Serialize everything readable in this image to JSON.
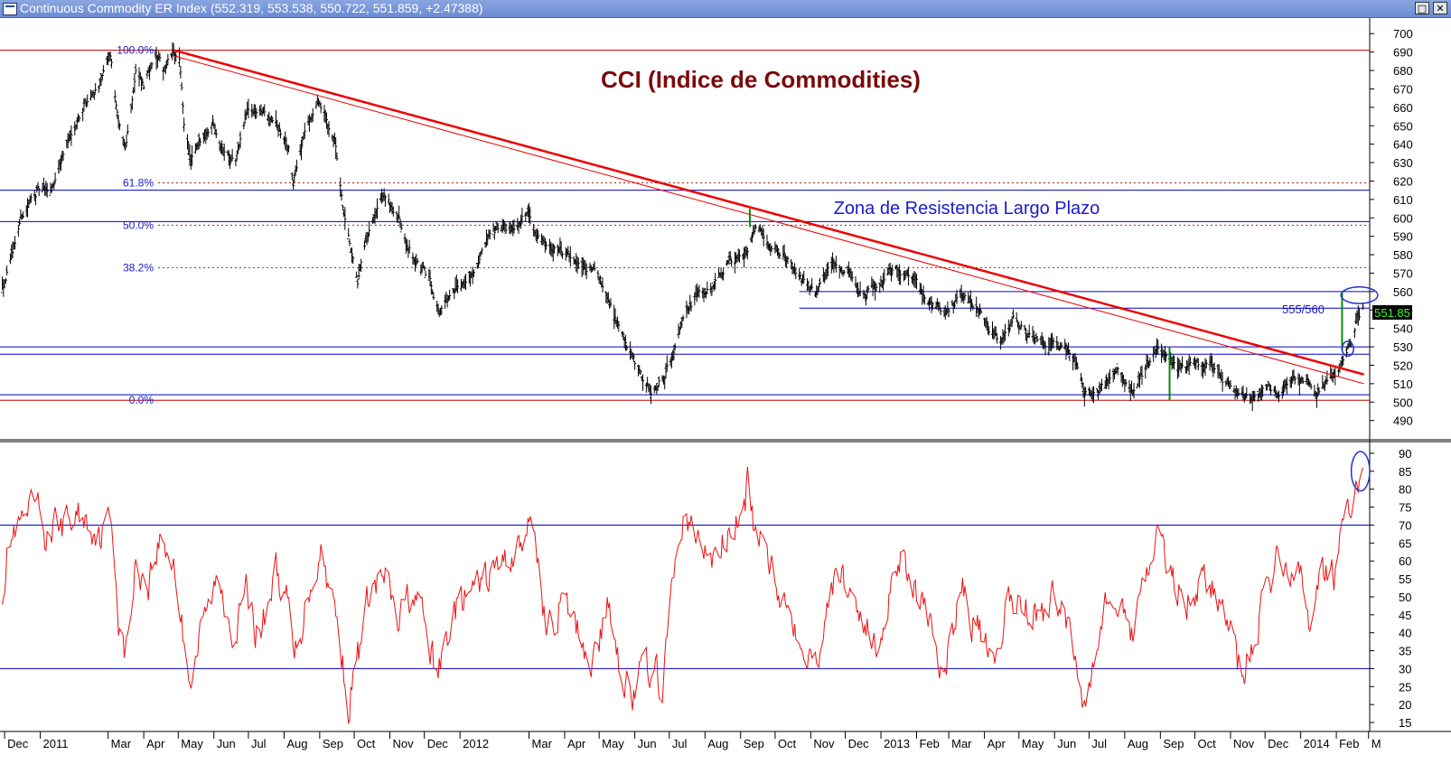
{
  "window": {
    "title": "Continuous Commodity ER Index",
    "quote": "(552.319, 553.538, 550.722, 551.859, +2.47388)",
    "restore_glyph": "□",
    "close_glyph": "✕"
  },
  "chart_data": [
    {
      "type": "ohlc",
      "title": "CCI (Indice de Commodities)",
      "price_label": "551.85",
      "annotation_zone": "Zona de Resistencia Largo Plazo",
      "annotation_level": "555/560",
      "ylim": [
        482,
        706
      ],
      "y_ticks": [
        490,
        500,
        510,
        520,
        530,
        540,
        550,
        560,
        570,
        580,
        590,
        600,
        610,
        620,
        630,
        640,
        650,
        660,
        670,
        680,
        690,
        700
      ],
      "fibonacci": [
        {
          "label": "100.0%",
          "value": 691
        },
        {
          "label": "61.8%",
          "value": 619
        },
        {
          "label": "50.0%",
          "value": 596
        },
        {
          "label": "38.2%",
          "value": 573
        },
        {
          "label": "0.0%",
          "value": 501
        }
      ],
      "horizontal_lines": [
        {
          "value": 615,
          "color": "#0000cc"
        },
        {
          "value": 598,
          "color": "#0000cc"
        },
        {
          "value": 560,
          "color": "#0000cc",
          "from": "2012-10-22"
        },
        {
          "value": 551,
          "color": "#0000cc",
          "from": "2012-10-22"
        },
        {
          "value": 530,
          "color": "#0000cc"
        },
        {
          "value": 526,
          "color": "#0000cc"
        },
        {
          "value": 504,
          "color": "#0000cc"
        },
        {
          "value": 691,
          "color": "#cc0000"
        },
        {
          "value": 501,
          "color": "#cc0000"
        }
      ],
      "trendlines": [
        {
          "from": [
            "2011-04-27",
            691
          ],
          "to": [
            "2014-02-25",
            515
          ],
          "color": "#ee0000",
          "width": 2.5
        },
        {
          "from": [
            "2011-04-27",
            688
          ],
          "to": [
            "2014-02-25",
            510
          ],
          "color": "#ee0000",
          "width": 1
        }
      ],
      "vertical_markers": [
        {
          "date": "2012-09-09",
          "from": 595,
          "to": 605,
          "color": "#0a8a0a"
        },
        {
          "date": "2013-09-09",
          "from": 501,
          "to": 530,
          "color": "#0a8a0a"
        },
        {
          "date": "2014-02-06",
          "from": 528,
          "to": 560,
          "color": "#0a8a0a"
        }
      ],
      "circles": [
        {
          "date": "2014-02-11",
          "value": 529,
          "rx_days": 5,
          "ry": 4,
          "color": "#2233cc"
        },
        {
          "date": "2014-02-21",
          "value": 558,
          "rx_days": 16,
          "ry": 4.5,
          "color": "#2233cc"
        }
      ],
      "close_path": [
        [
          "2010-11-28",
          562
        ],
        [
          "2010-12-06",
          576
        ],
        [
          "2010-12-15",
          600
        ],
        [
          "2010-12-29",
          615
        ],
        [
          "2011-01-10",
          614
        ],
        [
          "2011-01-25",
          642
        ],
        [
          "2011-02-08",
          662
        ],
        [
          "2011-02-22",
          673
        ],
        [
          "2011-03-03",
          688
        ],
        [
          "2011-03-10",
          650
        ],
        [
          "2011-03-16",
          638
        ],
        [
          "2011-03-25",
          680
        ],
        [
          "2011-04-01",
          670
        ],
        [
          "2011-04-10",
          690
        ],
        [
          "2011-04-18",
          680
        ],
        [
          "2011-04-27",
          690
        ],
        [
          "2011-05-02",
          685
        ],
        [
          "2011-05-06",
          652
        ],
        [
          "2011-05-12",
          630
        ],
        [
          "2011-05-20",
          640
        ],
        [
          "2011-05-31",
          653
        ],
        [
          "2011-06-10",
          637
        ],
        [
          "2011-06-20",
          632
        ],
        [
          "2011-06-30",
          658
        ],
        [
          "2011-07-15",
          657
        ],
        [
          "2011-07-25",
          651
        ],
        [
          "2011-08-05",
          637
        ],
        [
          "2011-08-09",
          618
        ],
        [
          "2011-08-18",
          646
        ],
        [
          "2011-08-31",
          663
        ],
        [
          "2011-09-07",
          652
        ],
        [
          "2011-09-14",
          643
        ],
        [
          "2011-09-22",
          600
        ],
        [
          "2011-09-30",
          575
        ],
        [
          "2011-10-04",
          565
        ],
        [
          "2011-10-13",
          590
        ],
        [
          "2011-10-27",
          612
        ],
        [
          "2011-11-08",
          600
        ],
        [
          "2011-11-22",
          578
        ],
        [
          "2011-12-06",
          566
        ],
        [
          "2011-12-14",
          550
        ],
        [
          "2011-12-28",
          560
        ],
        [
          "2012-01-10",
          568
        ],
        [
          "2012-01-25",
          587
        ],
        [
          "2012-02-08",
          595
        ],
        [
          "2012-02-22",
          596
        ],
        [
          "2012-03-01",
          604
        ],
        [
          "2012-03-09",
          590
        ],
        [
          "2012-03-20",
          585
        ],
        [
          "2012-04-01",
          581
        ],
        [
          "2012-04-12",
          574
        ],
        [
          "2012-04-26",
          572
        ],
        [
          "2012-05-07",
          560
        ],
        [
          "2012-05-20",
          538
        ],
        [
          "2012-06-01",
          520
        ],
        [
          "2012-06-15",
          505
        ],
        [
          "2012-06-25",
          514
        ],
        [
          "2012-07-03",
          523
        ],
        [
          "2012-07-12",
          548
        ],
        [
          "2012-07-25",
          558
        ],
        [
          "2012-08-07",
          560
        ],
        [
          "2012-08-20",
          575
        ],
        [
          "2012-09-05",
          580
        ],
        [
          "2012-09-14",
          596
        ],
        [
          "2012-09-25",
          585
        ],
        [
          "2012-10-08",
          580
        ],
        [
          "2012-10-22",
          568
        ],
        [
          "2012-11-05",
          560
        ],
        [
          "2012-11-20",
          575
        ],
        [
          "2012-12-03",
          572
        ],
        [
          "2012-12-17",
          557
        ],
        [
          "2013-01-02",
          565
        ],
        [
          "2013-01-14",
          574
        ],
        [
          "2013-01-30",
          565
        ],
        [
          "2013-02-15",
          553
        ],
        [
          "2013-02-26",
          550
        ],
        [
          "2013-03-12",
          558
        ],
        [
          "2013-03-28",
          548
        ],
        [
          "2013-04-05",
          538
        ],
        [
          "2013-04-15",
          532
        ],
        [
          "2013-04-26",
          545
        ],
        [
          "2013-05-10",
          536
        ],
        [
          "2013-05-24",
          532
        ],
        [
          "2013-06-10",
          530
        ],
        [
          "2013-06-20",
          520
        ],
        [
          "2013-06-27",
          505
        ],
        [
          "2013-07-05",
          505
        ],
        [
          "2013-07-16",
          511
        ],
        [
          "2013-07-25",
          520
        ],
        [
          "2013-08-07",
          505
        ],
        [
          "2013-08-20",
          520
        ],
        [
          "2013-08-30",
          529
        ],
        [
          "2013-09-10",
          522
        ],
        [
          "2013-09-20",
          518
        ],
        [
          "2013-10-01",
          521
        ],
        [
          "2013-10-15",
          520
        ],
        [
          "2013-10-28",
          512
        ],
        [
          "2013-11-08",
          504
        ],
        [
          "2013-11-20",
          503
        ],
        [
          "2013-12-02",
          508
        ],
        [
          "2013-12-13",
          505
        ],
        [
          "2013-12-23",
          512
        ],
        [
          "2014-01-06",
          511
        ],
        [
          "2014-01-15",
          505
        ],
        [
          "2014-01-24",
          513
        ],
        [
          "2014-02-03",
          516
        ],
        [
          "2014-02-10",
          527
        ],
        [
          "2014-02-14",
          533
        ],
        [
          "2014-02-19",
          546
        ],
        [
          "2014-02-24",
          552
        ]
      ],
      "x_axis": {
        "start": "2010-11-27",
        "end": "2014-03-02",
        "labels": [
          [
            "Dec",
            "2010-12-01"
          ],
          [
            "2011",
            "2011-01-01"
          ],
          [
            "Mar",
            "2011-03-01"
          ],
          [
            "Apr",
            "2011-04-01"
          ],
          [
            "May",
            "2011-05-01"
          ],
          [
            "Jun",
            "2011-06-01"
          ],
          [
            "Jul",
            "2011-07-01"
          ],
          [
            "Aug",
            "2011-08-01"
          ],
          [
            "Sep",
            "2011-09-01"
          ],
          [
            "Oct",
            "2011-10-01"
          ],
          [
            "Nov",
            "2011-11-01"
          ],
          [
            "Dec",
            "2011-12-01"
          ],
          [
            "2012",
            "2012-01-01"
          ],
          [
            "Mar",
            "2012-03-01"
          ],
          [
            "Apr",
            "2012-04-01"
          ],
          [
            "May",
            "2012-05-01"
          ],
          [
            "Jun",
            "2012-06-01"
          ],
          [
            "Jul",
            "2012-07-01"
          ],
          [
            "Aug",
            "2012-08-01"
          ],
          [
            "Sep",
            "2012-09-01"
          ],
          [
            "Oct",
            "2012-10-01"
          ],
          [
            "Nov",
            "2012-11-01"
          ],
          [
            "Dec",
            "2012-12-01"
          ],
          [
            "2013",
            "2013-01-01"
          ],
          [
            "Feb",
            "2013-02-01"
          ],
          [
            "Mar",
            "2013-03-01"
          ],
          [
            "Apr",
            "2013-04-01"
          ],
          [
            "May",
            "2013-05-01"
          ],
          [
            "Jun",
            "2013-06-01"
          ],
          [
            "Jul",
            "2013-07-01"
          ],
          [
            "Aug",
            "2013-08-01"
          ],
          [
            "Sep",
            "2013-09-01"
          ],
          [
            "Oct",
            "2013-10-01"
          ],
          [
            "Nov",
            "2013-11-01"
          ],
          [
            "Dec",
            "2013-12-01"
          ],
          [
            "2014",
            "2014-01-01"
          ],
          [
            "Feb",
            "2014-02-01"
          ],
          [
            "M",
            "2014-03-01"
          ]
        ]
      }
    },
    {
      "type": "line",
      "ylim": [
        13,
        92
      ],
      "y_ticks": [
        15,
        20,
        25,
        30,
        35,
        40,
        45,
        50,
        55,
        60,
        65,
        70,
        75,
        80,
        85,
        90
      ],
      "levels": [
        70,
        30
      ],
      "circle": {
        "date": "2014-02-22",
        "value": 85,
        "rx_days": 8,
        "ry": 5.5
      },
      "series_path": [
        [
          "2010-11-28",
          50
        ],
        [
          "2010-12-05",
          66
        ],
        [
          "2010-12-15",
          69
        ],
        [
          "2010-12-29",
          75
        ],
        [
          "2011-01-05",
          67
        ],
        [
          "2011-01-20",
          70
        ],
        [
          "2011-02-05",
          73
        ],
        [
          "2011-02-22",
          68
        ],
        [
          "2011-03-05",
          72
        ],
        [
          "2011-03-10",
          45
        ],
        [
          "2011-03-16",
          33
        ],
        [
          "2011-03-25",
          58
        ],
        [
          "2011-04-05",
          55
        ],
        [
          "2011-04-15",
          66
        ],
        [
          "2011-04-27",
          60
        ],
        [
          "2011-05-05",
          40
        ],
        [
          "2011-05-12",
          28
        ],
        [
          "2011-05-25",
          45
        ],
        [
          "2011-06-05",
          55
        ],
        [
          "2011-06-20",
          40
        ],
        [
          "2011-06-30",
          52
        ],
        [
          "2011-07-10",
          38
        ],
        [
          "2011-07-25",
          58
        ],
        [
          "2011-08-05",
          46
        ],
        [
          "2011-08-10",
          32
        ],
        [
          "2011-08-22",
          52
        ],
        [
          "2011-09-02",
          63
        ],
        [
          "2011-09-12",
          50
        ],
        [
          "2011-09-20",
          35
        ],
        [
          "2011-09-26",
          20
        ],
        [
          "2011-10-05",
          35
        ],
        [
          "2011-10-15",
          52
        ],
        [
          "2011-10-28",
          55
        ],
        [
          "2011-11-08",
          42
        ],
        [
          "2011-11-20",
          52
        ],
        [
          "2011-12-01",
          42
        ],
        [
          "2011-12-12",
          27
        ],
        [
          "2011-12-26",
          46
        ],
        [
          "2012-01-10",
          50
        ],
        [
          "2012-01-26",
          56
        ],
        [
          "2012-02-10",
          60
        ],
        [
          "2012-02-24",
          66
        ],
        [
          "2012-03-05",
          70
        ],
        [
          "2012-03-16",
          42
        ],
        [
          "2012-03-28",
          48
        ],
        [
          "2012-04-10",
          42
        ],
        [
          "2012-04-25",
          32
        ],
        [
          "2012-05-10",
          48
        ],
        [
          "2012-05-20",
          30
        ],
        [
          "2012-06-01",
          22
        ],
        [
          "2012-06-10",
          32
        ],
        [
          "2012-06-25",
          25
        ],
        [
          "2012-07-05",
          55
        ],
        [
          "2012-07-12",
          72
        ],
        [
          "2012-07-25",
          66
        ],
        [
          "2012-08-08",
          60
        ],
        [
          "2012-08-22",
          68
        ],
        [
          "2012-09-03",
          72
        ],
        [
          "2012-09-07",
          81
        ],
        [
          "2012-09-15",
          65
        ],
        [
          "2012-09-28",
          60
        ],
        [
          "2012-10-10",
          48
        ],
        [
          "2012-10-25",
          40
        ],
        [
          "2012-11-05",
          31
        ],
        [
          "2012-11-15",
          50
        ],
        [
          "2012-11-28",
          56
        ],
        [
          "2012-12-12",
          48
        ],
        [
          "2012-12-28",
          34
        ],
        [
          "2013-01-10",
          55
        ],
        [
          "2013-01-20",
          63
        ],
        [
          "2013-02-01",
          52
        ],
        [
          "2013-02-10",
          43
        ],
        [
          "2013-02-20",
          30
        ],
        [
          "2013-03-02",
          35
        ],
        [
          "2013-03-10",
          55
        ],
        [
          "2013-03-20",
          45
        ],
        [
          "2013-04-03",
          35
        ],
        [
          "2013-04-10",
          26
        ],
        [
          "2013-04-22",
          50
        ],
        [
          "2013-05-05",
          48
        ],
        [
          "2013-05-20",
          45
        ],
        [
          "2013-06-05",
          50
        ],
        [
          "2013-06-15",
          40
        ],
        [
          "2013-06-25",
          21
        ],
        [
          "2013-07-05",
          35
        ],
        [
          "2013-07-15",
          50
        ],
        [
          "2013-07-28",
          47
        ],
        [
          "2013-08-10",
          40
        ],
        [
          "2013-08-15",
          55
        ],
        [
          "2013-08-28",
          65
        ],
        [
          "2013-09-10",
          58
        ],
        [
          "2013-09-22",
          48
        ],
        [
          "2013-10-05",
          55
        ],
        [
          "2013-10-20",
          50
        ],
        [
          "2013-11-01",
          40
        ],
        [
          "2013-11-10",
          28
        ],
        [
          "2013-11-22",
          38
        ],
        [
          "2013-12-03",
          52
        ],
        [
          "2013-12-12",
          62
        ],
        [
          "2013-12-20",
          56
        ],
        [
          "2014-01-02",
          55
        ],
        [
          "2014-01-10",
          42
        ],
        [
          "2014-01-18",
          60
        ],
        [
          "2014-01-30",
          55
        ],
        [
          "2014-02-06",
          70
        ],
        [
          "2014-02-12",
          72
        ],
        [
          "2014-02-18",
          81
        ],
        [
          "2014-02-24",
          86
        ]
      ]
    }
  ]
}
